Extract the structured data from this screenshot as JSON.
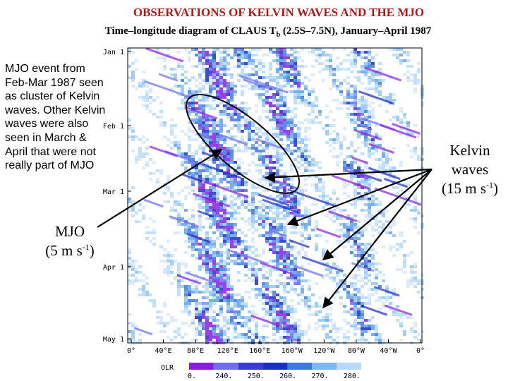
{
  "title": "OBSERVATIONS OF KELVIN WAVES AND THE MJO",
  "subtitle": {
    "main": "Time–longitude diagram of CLAUS T",
    "sub": "b",
    "rest": " (2.5S–7.5N), January–April 1987"
  },
  "note": "MJO event from Feb-Mar 1987 seen as cluster of Kelvin waves. Other Kelvin waves were also seen in March & April that were not really part of MJO",
  "mjo_label": {
    "name": "MJO",
    "speed": "(5 m s",
    "exp": "-1",
    "close": ")"
  },
  "kelvin_label": {
    "line1": "Kelvin",
    "line2": "waves",
    "speed": "(15 m s",
    "exp": "-1",
    "close": ")"
  },
  "y_axis": [
    "Jan 1",
    "Feb 1",
    "Mar 1",
    "Apr 1",
    "May 1"
  ],
  "x_axis": [
    "0°",
    "40°E",
    "80°E",
    "120°E",
    "160°E",
    "160°W",
    "120°W",
    "80°W",
    "40°W",
    "0°"
  ],
  "colorbar": {
    "label": "OLR",
    "ticks": [
      "0.",
      "240.",
      "250.",
      "260.",
      "270.",
      "280."
    ],
    "colors": [
      "#8a1ee0",
      "#6e6ef0",
      "#3a3ad8",
      "#1a2fc4",
      "#3c78e0",
      "#7ab8f4",
      "#b6daf8"
    ]
  }
}
